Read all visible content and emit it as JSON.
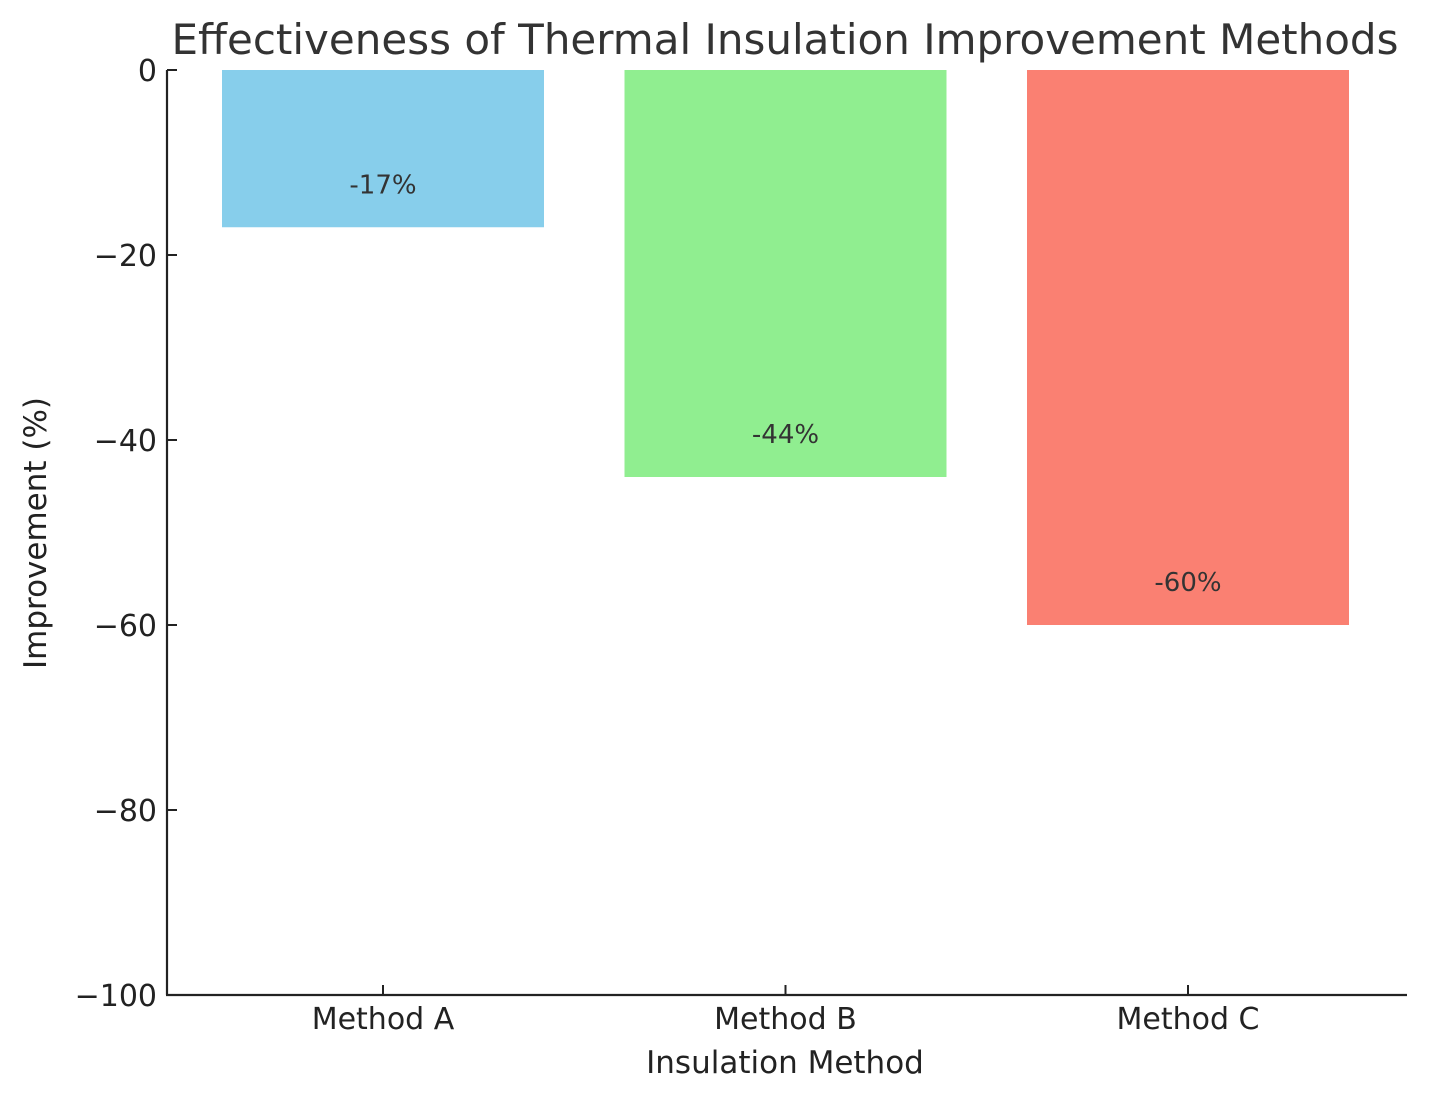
{
  "chart_data": {
    "type": "bar",
    "title": "Effectiveness of Thermal Insulation Improvement Methods",
    "xlabel": "Insulation Method",
    "ylabel": "Improvement (%)",
    "categories": [
      "Method A",
      "Method B",
      "Method C"
    ],
    "values": [
      -17,
      -44,
      -60
    ],
    "data_labels": [
      "-17%",
      "-44%",
      "-60%"
    ],
    "colors": [
      "#87CEEB",
      "#90EE90",
      "#FA8072"
    ],
    "ylim": [
      -100,
      0
    ],
    "yticks": [
      0,
      -20,
      -40,
      -60,
      -80,
      -100
    ],
    "ytick_labels": [
      "0",
      "−20",
      "−40",
      "−60",
      "−80",
      "−100"
    ],
    "grid": false,
    "legend": "none"
  }
}
